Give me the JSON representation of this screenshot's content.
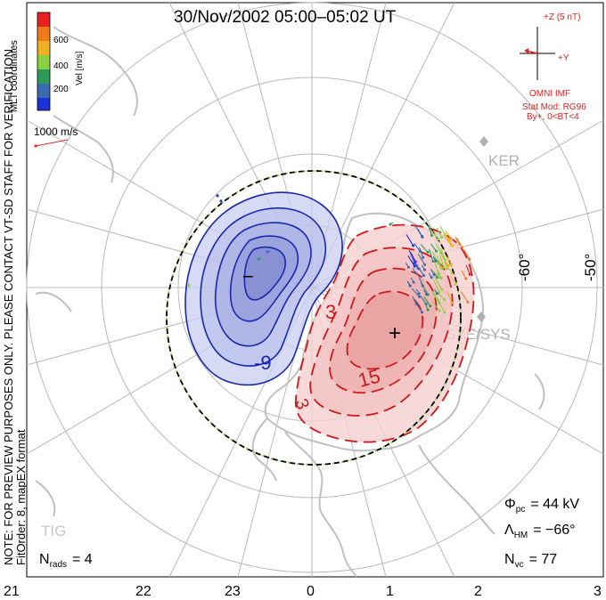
{
  "title": "30/Nov/2002 05:00–05:02 UT",
  "side_note": {
    "line1": "NOTE: FOR PREVIEW PURPOSES ONLY. PLEASE CONTACT VT-SD STAFF FOR VERIFICATION.",
    "line2": "FitOrder: 8, mapEX format"
  },
  "colorbar": {
    "coord_label": "MLT coordinates",
    "vel_label": "Vel [m/s]",
    "ticks": [
      "600",
      "400",
      "200"
    ],
    "colors": [
      "#e82020",
      "#f07a18",
      "#f0b020",
      "#8ad040",
      "#2a9a58",
      "#3a6ab0",
      "#2030d8"
    ]
  },
  "scale_vector": {
    "label": "1000 m/s",
    "color": "#e03030"
  },
  "imf": {
    "z_label": "+Z (5 nT)",
    "y_label": "+Y",
    "source_label": "OMNI IMF",
    "model_label": "Stat Mod: RG96",
    "model_params": "By+, 0<BT<4",
    "color": "#e02020"
  },
  "stations": [
    {
      "name": "KER"
    },
    {
      "name": "SYE/SYS"
    },
    {
      "name": "TIG"
    }
  ],
  "lat_labels": [
    "-60°",
    "-50°"
  ],
  "contour_labels": {
    "neg_value": "-9",
    "neg_sign": "−",
    "pos_outer": "3",
    "pos_inner": "15",
    "pos_lower": "3",
    "pos_sign": "+"
  },
  "stats": {
    "phi_sym": "Φ",
    "phi_sub": "pc",
    "phi_val": "= 44 kV",
    "lambda_sym": "Λ",
    "lambda_sub": "HM",
    "lambda_val": "= −66°",
    "nvc_sym": "N",
    "nvc_sub": "vc",
    "nvc_val": "= 77",
    "nrads_sym": "N",
    "nrads_sub": "rads",
    "nrads_val": "= 4"
  },
  "mlt_labels": [
    "21",
    "22",
    "23",
    "0",
    "1",
    "2",
    "3"
  ],
  "colors": {
    "negative": "#1a28b0",
    "negative_fill": "#c8cdf0",
    "positive": "#d01818",
    "positive_fill": "#f6d0d0",
    "boundary": "#000000",
    "boundary_dash": "#8ad040",
    "grid": "#b8b8b8",
    "coast": "#c0c0c0"
  }
}
